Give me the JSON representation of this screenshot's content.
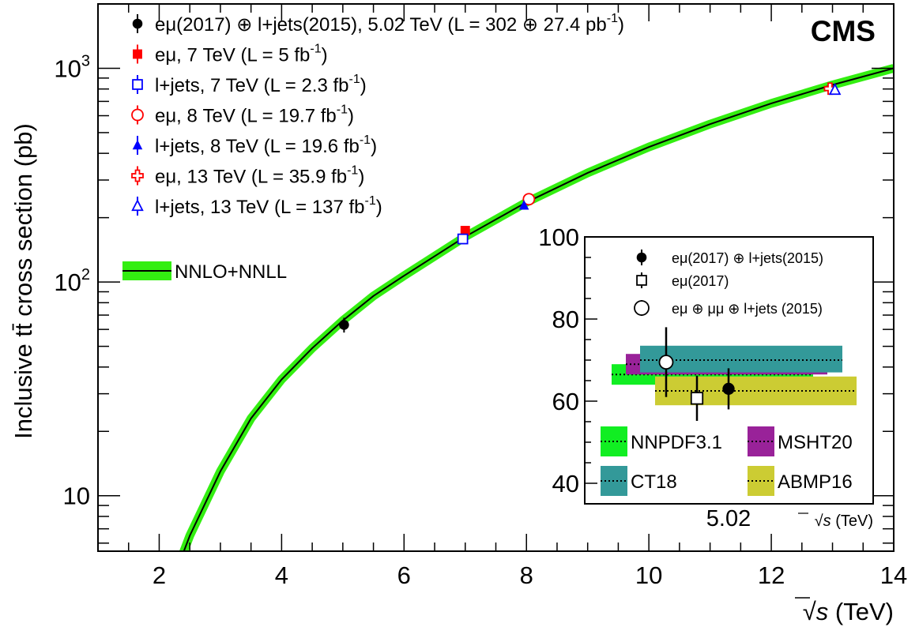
{
  "chart_data": [
    {
      "type": "scatter",
      "title": "",
      "brand": "CMS",
      "xlabel_sqrt": "√s",
      "xlabel_unit": "(TeV)",
      "ylabel": "Inclusive tt̄ cross section (pb)",
      "xlim": [
        1,
        14
      ],
      "ylim": [
        5.5,
        2000
      ],
      "yscale": "log",
      "xticks": [
        2,
        4,
        6,
        8,
        10,
        12,
        14
      ],
      "yticks": [
        {
          "value": 10,
          "base": "10",
          "exp": ""
        },
        {
          "value": 100,
          "base": "10",
          "exp": "2"
        },
        {
          "value": 1000,
          "base": "10",
          "exp": "3"
        }
      ],
      "series": [
        {
          "name": "eμ(2017) ⊕ l+jets(2015), 5.02 TeV (L = 302 ⊕ 27.4 pb",
          "name_sup": "-1",
          "name_end": ")",
          "marker": "filled-circle",
          "color": "#000000",
          "x": 5.02,
          "y": 63.0,
          "yerr_low": 5,
          "yerr_high": 5
        },
        {
          "name": "eμ, 7 TeV (L = 5 fb",
          "name_sup": "-1",
          "name_end": ")",
          "marker": "filled-square",
          "color": "#ff0000",
          "x": 7.0,
          "y": 174,
          "yerr_low": 7,
          "yerr_high": 7
        },
        {
          "name": "l+jets, 7 TeV (L = 2.3 fb",
          "name_sup": "-1",
          "name_end": ")",
          "marker": "open-square",
          "color": "#0000ff",
          "x": 6.96,
          "y": 159,
          "yerr_low": 8,
          "yerr_high": 8
        },
        {
          "name": "eμ, 8 TeV (L = 19.7 fb",
          "name_sup": "-1",
          "name_end": ")",
          "marker": "open-circle",
          "color": "#ff0000",
          "x": 8.04,
          "y": 244,
          "yerr_low": 9,
          "yerr_high": 9
        },
        {
          "name": "l+jets, 8 TeV (L = 19.6 fb",
          "name_sup": "-1",
          "name_end": ")",
          "marker": "filled-triangle",
          "color": "#0000ff",
          "x": 7.96,
          "y": 228,
          "yerr_low": 10,
          "yerr_high": 10
        },
        {
          "name": "eμ, 13 TeV (L = 35.9 fb",
          "name_sup": "-1",
          "name_end": ")",
          "marker": "open-cross",
          "color": "#ff0000",
          "x": 12.96,
          "y": 803,
          "yerr_low": 35,
          "yerr_high": 35
        },
        {
          "name": "l+jets, 13 TeV (L = 137 fb",
          "name_sup": "-1",
          "name_end": ")",
          "marker": "open-triangle",
          "color": "#0000ff",
          "x": 13.04,
          "y": 791,
          "yerr_low": 25,
          "yerr_high": 25
        }
      ],
      "theory": {
        "name": "NNLO+NNLL",
        "band_color": "#33ee11",
        "line_color": "#000000",
        "x": [
          2.3,
          2.5,
          3,
          3.5,
          4,
          4.5,
          5,
          5.5,
          6,
          7,
          8,
          9,
          10,
          11,
          12,
          13,
          14
        ],
        "y": [
          4.6,
          6.5,
          13,
          23,
          35,
          49,
          66,
          86,
          107,
          163,
          236,
          324,
          428,
          548,
          685,
          836,
          1000
        ]
      }
    },
    {
      "type": "scatter",
      "title": "",
      "xlabel_value": "5.02",
      "xlabel_sqrt": "√s",
      "xlabel_unit": "(TeV)",
      "ylim": [
        35,
        100
      ],
      "yticks": [
        40,
        60,
        80,
        100
      ],
      "series": [
        {
          "name": "eμ(2017) ⊕ l+jets(2015)",
          "marker": "filled-circle",
          "value": 63.0,
          "err_low": 5,
          "err_high": 5
        },
        {
          "name": "eμ(2017)",
          "marker": "open-square",
          "value": 60.7,
          "err_low": 5.5,
          "err_high": 5.5
        },
        {
          "name": "eμ ⊕ μμ ⊕ l+jets  (2015)",
          "marker": "open-circle",
          "value": 69.5,
          "err_low": 8.5,
          "err_high": 8.5
        }
      ],
      "pdf_bands": [
        {
          "name": "NNPDF3.1",
          "color": "#11ee22",
          "central": 66.5,
          "low": 64.0,
          "high": 69.0
        },
        {
          "name": "MSHT20",
          "color": "#992299",
          "central": 69.0,
          "low": 66.5,
          "high": 71.5
        },
        {
          "name": "CT18",
          "color": "#339999",
          "central": 70.0,
          "low": 67.0,
          "high": 73.5
        },
        {
          "name": "ABMP16",
          "color": "#cccc33",
          "central": 62.5,
          "low": 59.0,
          "high": 66.0
        }
      ]
    }
  ]
}
